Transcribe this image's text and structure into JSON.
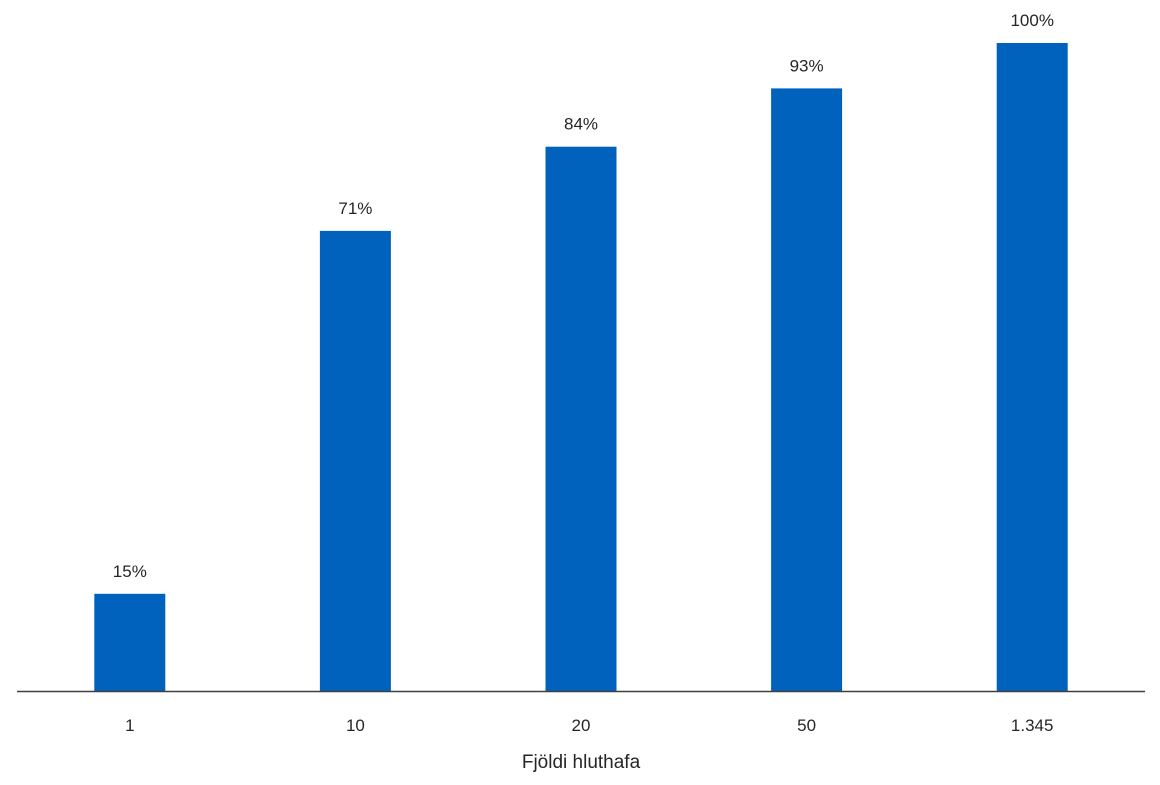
{
  "chart_data": {
    "type": "bar",
    "categories": [
      "1",
      "10",
      "20",
      "50",
      "1.345"
    ],
    "values": [
      15,
      71,
      84,
      93,
      100
    ],
    "data_labels": [
      "15%",
      "71%",
      "84%",
      "93%",
      "100%"
    ],
    "title": "",
    "xlabel": "Fjöldi hluthafa",
    "ylabel": "",
    "ylim": [
      0,
      100
    ],
    "grid": false,
    "legend": "none",
    "bar_color": "#0062BD",
    "axis_color": "#404040"
  }
}
